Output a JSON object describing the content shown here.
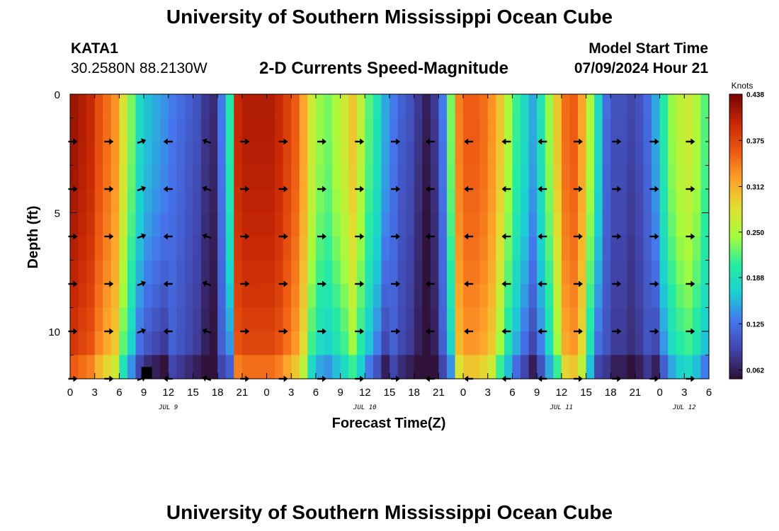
{
  "header": {
    "title": "University of Southern Mississippi Ocean Cube",
    "station_id": "KATA1",
    "coords": "30.2580N  88.2130W",
    "subtitle": "2-D Currents Speed-Magnitude",
    "model_start_label": "Model Start Time",
    "model_start_value": "07/09/2024 Hour 21"
  },
  "footer": {
    "title": "University of Southern Mississippi Ocean Cube"
  },
  "chart_data": {
    "type": "heatmap",
    "title": "2-D Currents Speed-Magnitude",
    "xlabel": "Forecast Time(Z)",
    "ylabel": "Depth (ft)",
    "x_hours_range": [
      0,
      78
    ],
    "x_ticks": [
      {
        "h": 0,
        "label": "0"
      },
      {
        "h": 3,
        "label": "3"
      },
      {
        "h": 6,
        "label": "6"
      },
      {
        "h": 9,
        "label": "9"
      },
      {
        "h": 12,
        "label": "12"
      },
      {
        "h": 15,
        "label": "15"
      },
      {
        "h": 18,
        "label": "18"
      },
      {
        "h": 21,
        "label": "21"
      },
      {
        "h": 24,
        "label": "0"
      },
      {
        "h": 27,
        "label": "3"
      },
      {
        "h": 30,
        "label": "6"
      },
      {
        "h": 33,
        "label": "9"
      },
      {
        "h": 36,
        "label": "12"
      },
      {
        "h": 39,
        "label": "15"
      },
      {
        "h": 42,
        "label": "18"
      },
      {
        "h": 45,
        "label": "21"
      },
      {
        "h": 48,
        "label": "0"
      },
      {
        "h": 51,
        "label": "3"
      },
      {
        "h": 54,
        "label": "6"
      },
      {
        "h": 57,
        "label": "9"
      },
      {
        "h": 60,
        "label": "12"
      },
      {
        "h": 63,
        "label": "15"
      },
      {
        "h": 66,
        "label": "18"
      },
      {
        "h": 69,
        "label": "21"
      },
      {
        "h": 72,
        "label": "0"
      },
      {
        "h": 75,
        "label": "3"
      },
      {
        "h": 78,
        "label": "6"
      }
    ],
    "date_labels": [
      {
        "h": 12,
        "label": "JUL 9"
      },
      {
        "h": 36,
        "label": "JUL 10"
      },
      {
        "h": 60,
        "label": "JUL 11"
      },
      {
        "h": 75,
        "label": "JUL 12"
      }
    ],
    "y_range_ft": [
      0,
      12
    ],
    "y_ticks": [
      0,
      5,
      10
    ],
    "colorbar": {
      "units": "Knots",
      "min": 0.05,
      "max": 0.438,
      "tick_values": [
        0.438,
        0.375,
        0.312,
        0.25,
        0.188,
        0.125,
        0.062
      ],
      "tick_labels": [
        "0.438",
        "0.375",
        "0.312",
        "0.250",
        "0.188",
        "0.125",
        "0.062"
      ]
    },
    "time_speed_profile_knots": {
      "hours": [
        0,
        1,
        2,
        3,
        4,
        5,
        6,
        7,
        8,
        9,
        10,
        11,
        12,
        13,
        14,
        15,
        16,
        17,
        18,
        19,
        20,
        21,
        22,
        23,
        24,
        25,
        26,
        27,
        28,
        29,
        30,
        31,
        32,
        33,
        34,
        35,
        36,
        37,
        38,
        39,
        40,
        41,
        42,
        43,
        44,
        45,
        46,
        47,
        48,
        49,
        50,
        51,
        52,
        53,
        54,
        55,
        56,
        57,
        58,
        59,
        60,
        61,
        62,
        63,
        64,
        65,
        66,
        67,
        68,
        69,
        70,
        71,
        72,
        73,
        74,
        75,
        76,
        77
      ],
      "surface": [
        0.42,
        0.41,
        0.4,
        0.37,
        0.35,
        0.33,
        0.28,
        0.23,
        0.18,
        0.16,
        0.15,
        0.14,
        0.13,
        0.12,
        0.11,
        0.1,
        0.08,
        0.07,
        0.13,
        0.2,
        0.4,
        0.41,
        0.41,
        0.41,
        0.41,
        0.4,
        0.38,
        0.36,
        0.32,
        0.27,
        0.24,
        0.23,
        0.25,
        0.27,
        0.3,
        0.26,
        0.22,
        0.19,
        0.15,
        0.13,
        0.11,
        0.1,
        0.08,
        0.06,
        0.08,
        0.13,
        0.23,
        0.34,
        0.36,
        0.36,
        0.35,
        0.33,
        0.3,
        0.25,
        0.21,
        0.18,
        0.15,
        0.19,
        0.24,
        0.3,
        0.35,
        0.36,
        0.32,
        0.25,
        0.18,
        0.12,
        0.1,
        0.1,
        0.09,
        0.1,
        0.12,
        0.15,
        0.2,
        0.24,
        0.26,
        0.27,
        0.25,
        0.22
      ],
      "depth_factor_note": "speed decreases with depth in weak bands; near-bottom column darker"
    },
    "vector_rows_ft": [
      2,
      4,
      6,
      8,
      10,
      12
    ],
    "vector_columns": [
      {
        "h": 0.3,
        "dir": "right"
      },
      {
        "h": 4.7,
        "dir": "right"
      },
      {
        "h": 8.7,
        "dir": "right-up"
      },
      {
        "h": 12.0,
        "dir": "left"
      },
      {
        "h": 16.7,
        "dir": "left-up"
      },
      {
        "h": 21.3,
        "dir": "right"
      },
      {
        "h": 26.0,
        "dir": "right"
      },
      {
        "h": 30.7,
        "dir": "right"
      },
      {
        "h": 35.3,
        "dir": "right"
      },
      {
        "h": 39.7,
        "dir": "right"
      },
      {
        "h": 44.0,
        "dir": "left"
      },
      {
        "h": 48.7,
        "dir": "left"
      },
      {
        "h": 53.3,
        "dir": "left"
      },
      {
        "h": 57.7,
        "dir": "left"
      },
      {
        "h": 62.0,
        "dir": "right"
      },
      {
        "h": 66.7,
        "dir": "right"
      },
      {
        "h": 71.3,
        "dir": "right"
      },
      {
        "h": 75.7,
        "dir": "right"
      }
    ]
  }
}
